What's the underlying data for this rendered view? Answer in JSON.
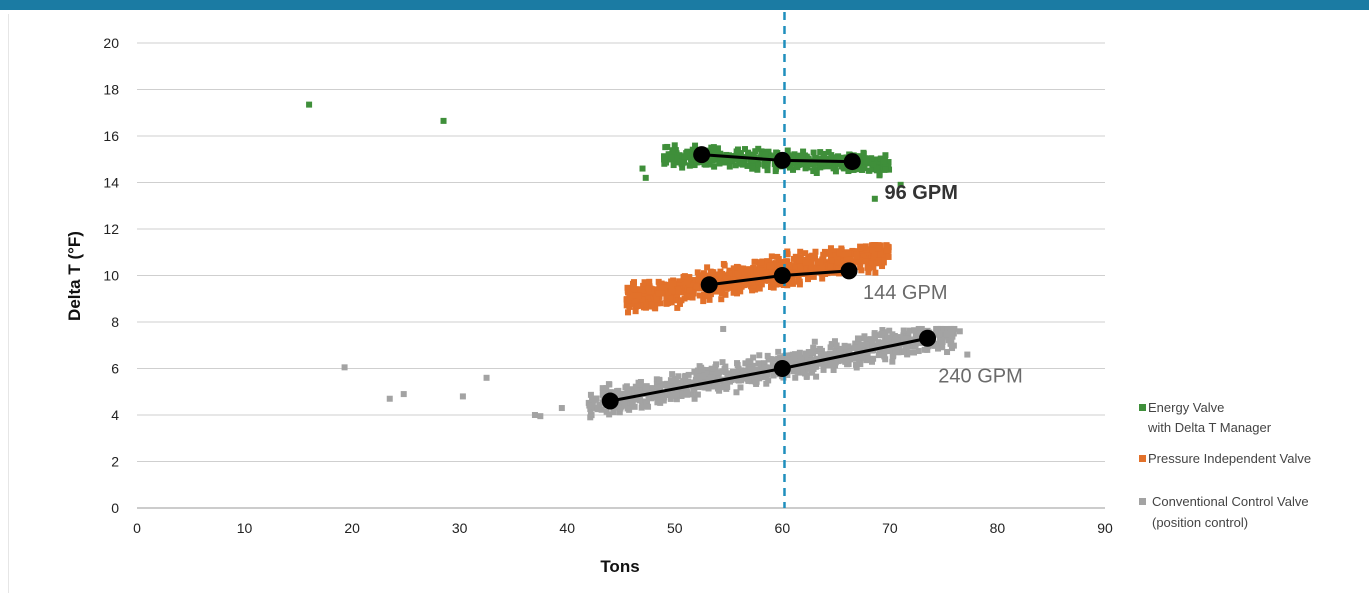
{
  "chart_data": {
    "type": "scatter",
    "xlabel": "Tons",
    "ylabel": "Delta T (°F)",
    "xlim": [
      0,
      90
    ],
    "ylim": [
      0,
      20
    ],
    "x_ticks": [
      "0",
      "10",
      "20",
      "30",
      "40",
      "50",
      "60",
      "70",
      "80",
      "90"
    ],
    "y_ticks": [
      "0",
      "2",
      "4",
      "6",
      "8",
      "10",
      "12",
      "14",
      "16",
      "18",
      "20"
    ],
    "grid": "horizontal",
    "reference_line": {
      "x": 60.2,
      "style": "dashed",
      "color": "#1f8fbd"
    },
    "legend_position": "right",
    "series": [
      {
        "key": "energy",
        "legend_lines": [
          "Energy Valve",
          "with Delta T Manager"
        ],
        "color": "#3f8f3a",
        "annotation": "96 GPM",
        "annotation_bold": true,
        "annotation_at": [
          69.5,
          13.3
        ],
        "cloud": {
          "x": [
            49,
            70
          ],
          "y": [
            13.8,
            16.4
          ],
          "slope": -0.02,
          "yspread": 0.35,
          "n": 420
        },
        "outliers": [
          [
            16,
            17.35
          ],
          [
            28.5,
            16.65
          ],
          [
            47,
            14.6
          ],
          [
            47.3,
            14.2
          ],
          [
            68.6,
            13.3
          ],
          [
            71,
            13.9
          ]
        ],
        "trend_points": [
          [
            52.5,
            15.2
          ],
          [
            60.0,
            14.95
          ],
          [
            66.5,
            14.9
          ]
        ]
      },
      {
        "key": "pressure",
        "legend_lines": [
          "Pressure Independent Valve"
        ],
        "color": "#e2712a",
        "annotation": "144 GPM",
        "annotation_bold": false,
        "annotation_at": [
          67.5,
          9.0
        ],
        "cloud": {
          "x": [
            45.5,
            70
          ],
          "y": [
            7.6,
            11.3
          ],
          "slope": 0.085,
          "yspread": 0.55,
          "n": 900
        },
        "outliers": [],
        "trend_points": [
          [
            53.2,
            9.6
          ],
          [
            60.0,
            10.0
          ],
          [
            66.2,
            10.2
          ]
        ]
      },
      {
        "key": "conventional",
        "legend_lines": [
          "Conventional Control Valve",
          "(position control)"
        ],
        "color": "#a3a3a3",
        "annotation": "240 GPM",
        "annotation_bold": false,
        "annotation_at": [
          74.5,
          5.4
        ],
        "cloud": {
          "x": [
            42,
            76
          ],
          "y": [
            3.9,
            7.7
          ],
          "slope": 0.092,
          "yspread": 0.55,
          "n": 900
        },
        "outliers": [
          [
            19.3,
            6.05
          ],
          [
            23.5,
            4.7
          ],
          [
            24.8,
            4.9
          ],
          [
            30.3,
            4.8
          ],
          [
            32.5,
            5.6
          ],
          [
            37,
            4.0
          ],
          [
            37.5,
            3.95
          ],
          [
            39.5,
            4.3
          ],
          [
            54.5,
            7.7
          ],
          [
            76.5,
            7.6
          ],
          [
            77.2,
            6.6
          ]
        ],
        "trend_points": [
          [
            44.0,
            4.6
          ],
          [
            60.0,
            6.0
          ],
          [
            73.5,
            7.3
          ]
        ]
      }
    ]
  }
}
